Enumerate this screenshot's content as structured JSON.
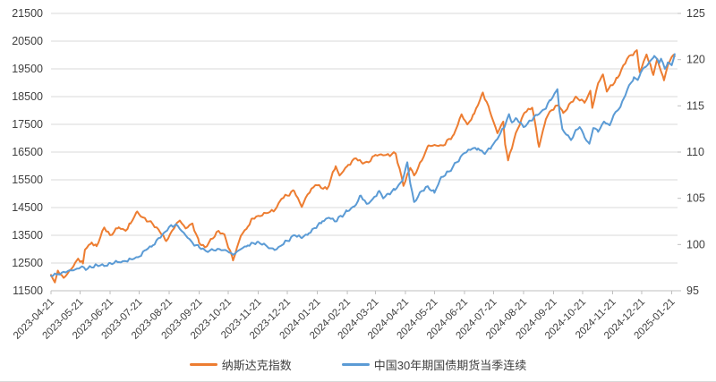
{
  "page": {
    "background": "#ffffff"
  },
  "legend": {
    "position": "bottom-center"
  },
  "chart_data": {
    "type": "line",
    "title": "",
    "grid": "horizontal",
    "text_color": "#404040",
    "gridline_color": "#d9d9d9",
    "axis_line_color": "#bfbfbf",
    "x_axis": {
      "start": "2023-04-21",
      "end": "2025-01-27",
      "tick_labels": [
        "2023-04-21",
        "2023-05-21",
        "2023-06-21",
        "2023-07-21",
        "2023-08-21",
        "2023-09-21",
        "2023-10-21",
        "2023-11-21",
        "2023-12-21",
        "2024-01-21",
        "2024-02-21",
        "2024-03-21",
        "2024-04-21",
        "2024-05-21",
        "2024-06-21",
        "2024-07-21",
        "2024-08-21",
        "2024-09-21",
        "2024-10-21",
        "2024-11-21",
        "2024-12-21",
        "2025-01-21"
      ],
      "label_rotation_deg": -45
    },
    "y_axis_left": {
      "min": 11500,
      "max": 21500,
      "step": 1000,
      "tick_labels": [
        "11500",
        "12500",
        "13500",
        "14500",
        "15500",
        "16500",
        "17500",
        "18500",
        "19500",
        "20500",
        "21500"
      ]
    },
    "y_axis_right": {
      "min": 95,
      "max": 125,
      "step": 5,
      "tick_labels": [
        "95",
        "100",
        "105",
        "110",
        "115",
        "120",
        "125"
      ]
    },
    "series": [
      {
        "name": "纳斯达克指数",
        "color": "#ED7D31",
        "axis": "left",
        "points": [
          [
            "2023-04-21",
            12072
          ],
          [
            "2023-04-25",
            11799
          ],
          [
            "2023-04-28",
            12227
          ],
          [
            "2023-05-04",
            11966
          ],
          [
            "2023-05-12",
            12285
          ],
          [
            "2023-05-19",
            12658
          ],
          [
            "2023-05-24",
            12484
          ],
          [
            "2023-05-26",
            12976
          ],
          [
            "2023-06-02",
            13241
          ],
          [
            "2023-06-07",
            13105
          ],
          [
            "2023-06-15",
            13782
          ],
          [
            "2023-06-21",
            13502
          ],
          [
            "2023-06-30",
            13788
          ],
          [
            "2023-07-07",
            13661
          ],
          [
            "2023-07-12",
            13919
          ],
          [
            "2023-07-19",
            14358
          ],
          [
            "2023-07-25",
            14145
          ],
          [
            "2023-08-04",
            13909
          ],
          [
            "2023-08-11",
            13645
          ],
          [
            "2023-08-18",
            13291
          ],
          [
            "2023-08-29",
            13944
          ],
          [
            "2023-09-01",
            14032
          ],
          [
            "2023-09-07",
            13749
          ],
          [
            "2023-09-14",
            13926
          ],
          [
            "2023-09-21",
            13224
          ],
          [
            "2023-09-27",
            13064
          ],
          [
            "2023-10-11",
            13660
          ],
          [
            "2023-10-17",
            13534
          ],
          [
            "2023-10-26",
            12595
          ],
          [
            "2023-11-03",
            13478
          ],
          [
            "2023-11-10",
            13798
          ],
          [
            "2023-11-15",
            14104
          ],
          [
            "2023-11-21",
            14200
          ],
          [
            "2023-12-01",
            14305
          ],
          [
            "2023-12-08",
            14404
          ],
          [
            "2023-12-15",
            14814
          ],
          [
            "2023-12-28",
            15099
          ],
          [
            "2024-01-05",
            14524
          ],
          [
            "2024-01-11",
            14970
          ],
          [
            "2024-01-19",
            15311
          ],
          [
            "2024-01-31",
            15164
          ],
          [
            "2024-02-09",
            15991
          ],
          [
            "2024-02-13",
            15656
          ],
          [
            "2024-02-22",
            16041
          ],
          [
            "2024-03-01",
            16275
          ],
          [
            "2024-03-08",
            16085
          ],
          [
            "2024-03-14",
            16129
          ],
          [
            "2024-03-21",
            16401
          ],
          [
            "2024-04-01",
            16397
          ],
          [
            "2024-04-11",
            16442
          ],
          [
            "2024-04-19",
            15282
          ],
          [
            "2024-04-26",
            15928
          ],
          [
            "2024-04-30",
            15658
          ],
          [
            "2024-05-10",
            16341
          ],
          [
            "2024-05-15",
            16743
          ],
          [
            "2024-05-23",
            16736
          ],
          [
            "2024-05-30",
            16737
          ],
          [
            "2024-06-10",
            17133
          ],
          [
            "2024-06-18",
            17862
          ],
          [
            "2024-06-24",
            17496
          ],
          [
            "2024-07-01",
            17879
          ],
          [
            "2024-07-10",
            18647
          ],
          [
            "2024-07-17",
            17997
          ],
          [
            "2024-07-25",
            17182
          ],
          [
            "2024-07-31",
            17599
          ],
          [
            "2024-08-02",
            16776
          ],
          [
            "2024-08-05",
            16200
          ],
          [
            "2024-08-13",
            17188
          ],
          [
            "2024-08-22",
            17919
          ],
          [
            "2024-08-30",
            18100
          ],
          [
            "2024-09-06",
            16691
          ],
          [
            "2024-09-13",
            17684
          ],
          [
            "2024-09-19",
            18014
          ],
          [
            "2024-09-26",
            18190
          ],
          [
            "2024-10-01",
            17910
          ],
          [
            "2024-10-14",
            18503
          ],
          [
            "2024-10-23",
            18276
          ],
          [
            "2024-10-29",
            18713
          ],
          [
            "2024-10-31",
            18095
          ],
          [
            "2024-11-06",
            18983
          ],
          [
            "2024-11-11",
            19299
          ],
          [
            "2024-11-15",
            18680
          ],
          [
            "2024-11-26",
            19175
          ],
          [
            "2024-12-06",
            19860
          ],
          [
            "2024-12-16",
            20174
          ],
          [
            "2024-12-19",
            19373
          ],
          [
            "2024-12-26",
            20020
          ],
          [
            "2025-01-02",
            19281
          ],
          [
            "2025-01-06",
            19865
          ],
          [
            "2025-01-13",
            19088
          ],
          [
            "2025-01-17",
            19630
          ],
          [
            "2025-01-23",
            20009
          ],
          [
            "2025-01-24",
            19954
          ]
        ]
      },
      {
        "name": "中国30年期国债期货当季连续",
        "color": "#5B9BD5",
        "axis": "right",
        "points": [
          [
            "2023-04-21",
            96.6
          ],
          [
            "2023-04-28",
            96.8
          ],
          [
            "2023-05-08",
            97.1
          ],
          [
            "2023-05-16",
            97.3
          ],
          [
            "2023-05-21",
            97.5
          ],
          [
            "2023-05-29",
            97.4
          ],
          [
            "2023-06-07",
            97.8
          ],
          [
            "2023-06-16",
            97.7
          ],
          [
            "2023-06-21",
            98.0
          ],
          [
            "2023-06-30",
            98.1
          ],
          [
            "2023-07-07",
            98.2
          ],
          [
            "2023-07-14",
            98.4
          ],
          [
            "2023-07-21",
            98.7
          ],
          [
            "2023-07-28",
            99.4
          ],
          [
            "2023-08-04",
            99.9
          ],
          [
            "2023-08-15",
            101.2
          ],
          [
            "2023-08-21",
            101.9
          ],
          [
            "2023-08-28",
            102.2
          ],
          [
            "2023-09-07",
            101.0
          ],
          [
            "2023-09-14",
            100.2
          ],
          [
            "2023-09-21",
            99.7
          ],
          [
            "2023-09-28",
            99.3
          ],
          [
            "2023-10-12",
            99.5
          ],
          [
            "2023-10-20",
            99.3
          ],
          [
            "2023-10-26",
            98.9
          ],
          [
            "2023-11-03",
            99.5
          ],
          [
            "2023-11-10",
            99.9
          ],
          [
            "2023-11-21",
            100.3
          ],
          [
            "2023-11-30",
            99.8
          ],
          [
            "2023-12-08",
            99.4
          ],
          [
            "2023-12-15",
            99.9
          ],
          [
            "2023-12-21",
            100.4
          ],
          [
            "2023-12-29",
            101.0
          ],
          [
            "2024-01-05",
            100.7
          ],
          [
            "2024-01-12",
            101.2
          ],
          [
            "2024-01-21",
            102.0
          ],
          [
            "2024-01-26",
            102.5
          ],
          [
            "2024-02-02",
            102.9
          ],
          [
            "2024-02-08",
            102.5
          ],
          [
            "2024-02-21",
            103.6
          ],
          [
            "2024-02-28",
            104.1
          ],
          [
            "2024-03-06",
            105.3
          ],
          [
            "2024-03-12",
            104.4
          ],
          [
            "2024-03-18",
            104.9
          ],
          [
            "2024-03-25",
            105.8
          ],
          [
            "2024-03-29",
            105.0
          ],
          [
            "2024-04-03",
            105.5
          ],
          [
            "2024-04-10",
            105.9
          ],
          [
            "2024-04-18",
            106.9
          ],
          [
            "2024-04-23",
            108.9
          ],
          [
            "2024-04-26",
            106.6
          ],
          [
            "2024-04-30",
            104.6
          ],
          [
            "2024-05-08",
            105.8
          ],
          [
            "2024-05-14",
            106.3
          ],
          [
            "2024-05-21",
            105.6
          ],
          [
            "2024-05-28",
            107.3
          ],
          [
            "2024-06-05",
            107.9
          ],
          [
            "2024-06-13",
            108.9
          ],
          [
            "2024-06-21",
            109.9
          ],
          [
            "2024-06-28",
            110.3
          ],
          [
            "2024-07-05",
            110.4
          ],
          [
            "2024-07-12",
            109.8
          ],
          [
            "2024-07-19",
            110.6
          ],
          [
            "2024-07-26",
            111.6
          ],
          [
            "2024-08-02",
            112.9
          ],
          [
            "2024-08-06",
            114.1
          ],
          [
            "2024-08-09",
            113.2
          ],
          [
            "2024-08-14",
            113.6
          ],
          [
            "2024-08-21",
            112.7
          ],
          [
            "2024-08-28",
            113.4
          ],
          [
            "2024-09-04",
            114.0
          ],
          [
            "2024-09-11",
            114.6
          ],
          [
            "2024-09-18",
            115.6
          ],
          [
            "2024-09-25",
            116.8
          ],
          [
            "2024-09-27",
            114.5
          ],
          [
            "2024-09-30",
            112.5
          ],
          [
            "2024-10-09",
            111.3
          ],
          [
            "2024-10-14",
            112.4
          ],
          [
            "2024-10-18",
            112.7
          ],
          [
            "2024-10-23",
            111.6
          ],
          [
            "2024-10-28",
            110.9
          ],
          [
            "2024-11-01",
            112.6
          ],
          [
            "2024-11-06",
            112.2
          ],
          [
            "2024-11-12",
            113.3
          ],
          [
            "2024-11-18",
            112.9
          ],
          [
            "2024-11-22",
            114.0
          ],
          [
            "2024-11-27",
            114.6
          ],
          [
            "2024-12-02",
            115.7
          ],
          [
            "2024-12-06",
            116.7
          ],
          [
            "2024-12-10",
            117.5
          ],
          [
            "2024-12-13",
            118.1
          ],
          [
            "2024-12-17",
            117.8
          ],
          [
            "2024-12-20",
            118.6
          ],
          [
            "2024-12-25",
            119.2
          ],
          [
            "2024-12-31",
            120.0
          ],
          [
            "2025-01-03",
            120.4
          ],
          [
            "2025-01-08",
            119.6
          ],
          [
            "2025-01-10",
            120.1
          ],
          [
            "2025-01-14",
            119.0
          ],
          [
            "2025-01-17",
            119.7
          ],
          [
            "2025-01-21",
            119.4
          ],
          [
            "2025-01-24",
            120.6
          ]
        ]
      }
    ],
    "legend_entries": [
      "纳斯达克指数",
      "中国30年期国债期货当季连续"
    ]
  }
}
